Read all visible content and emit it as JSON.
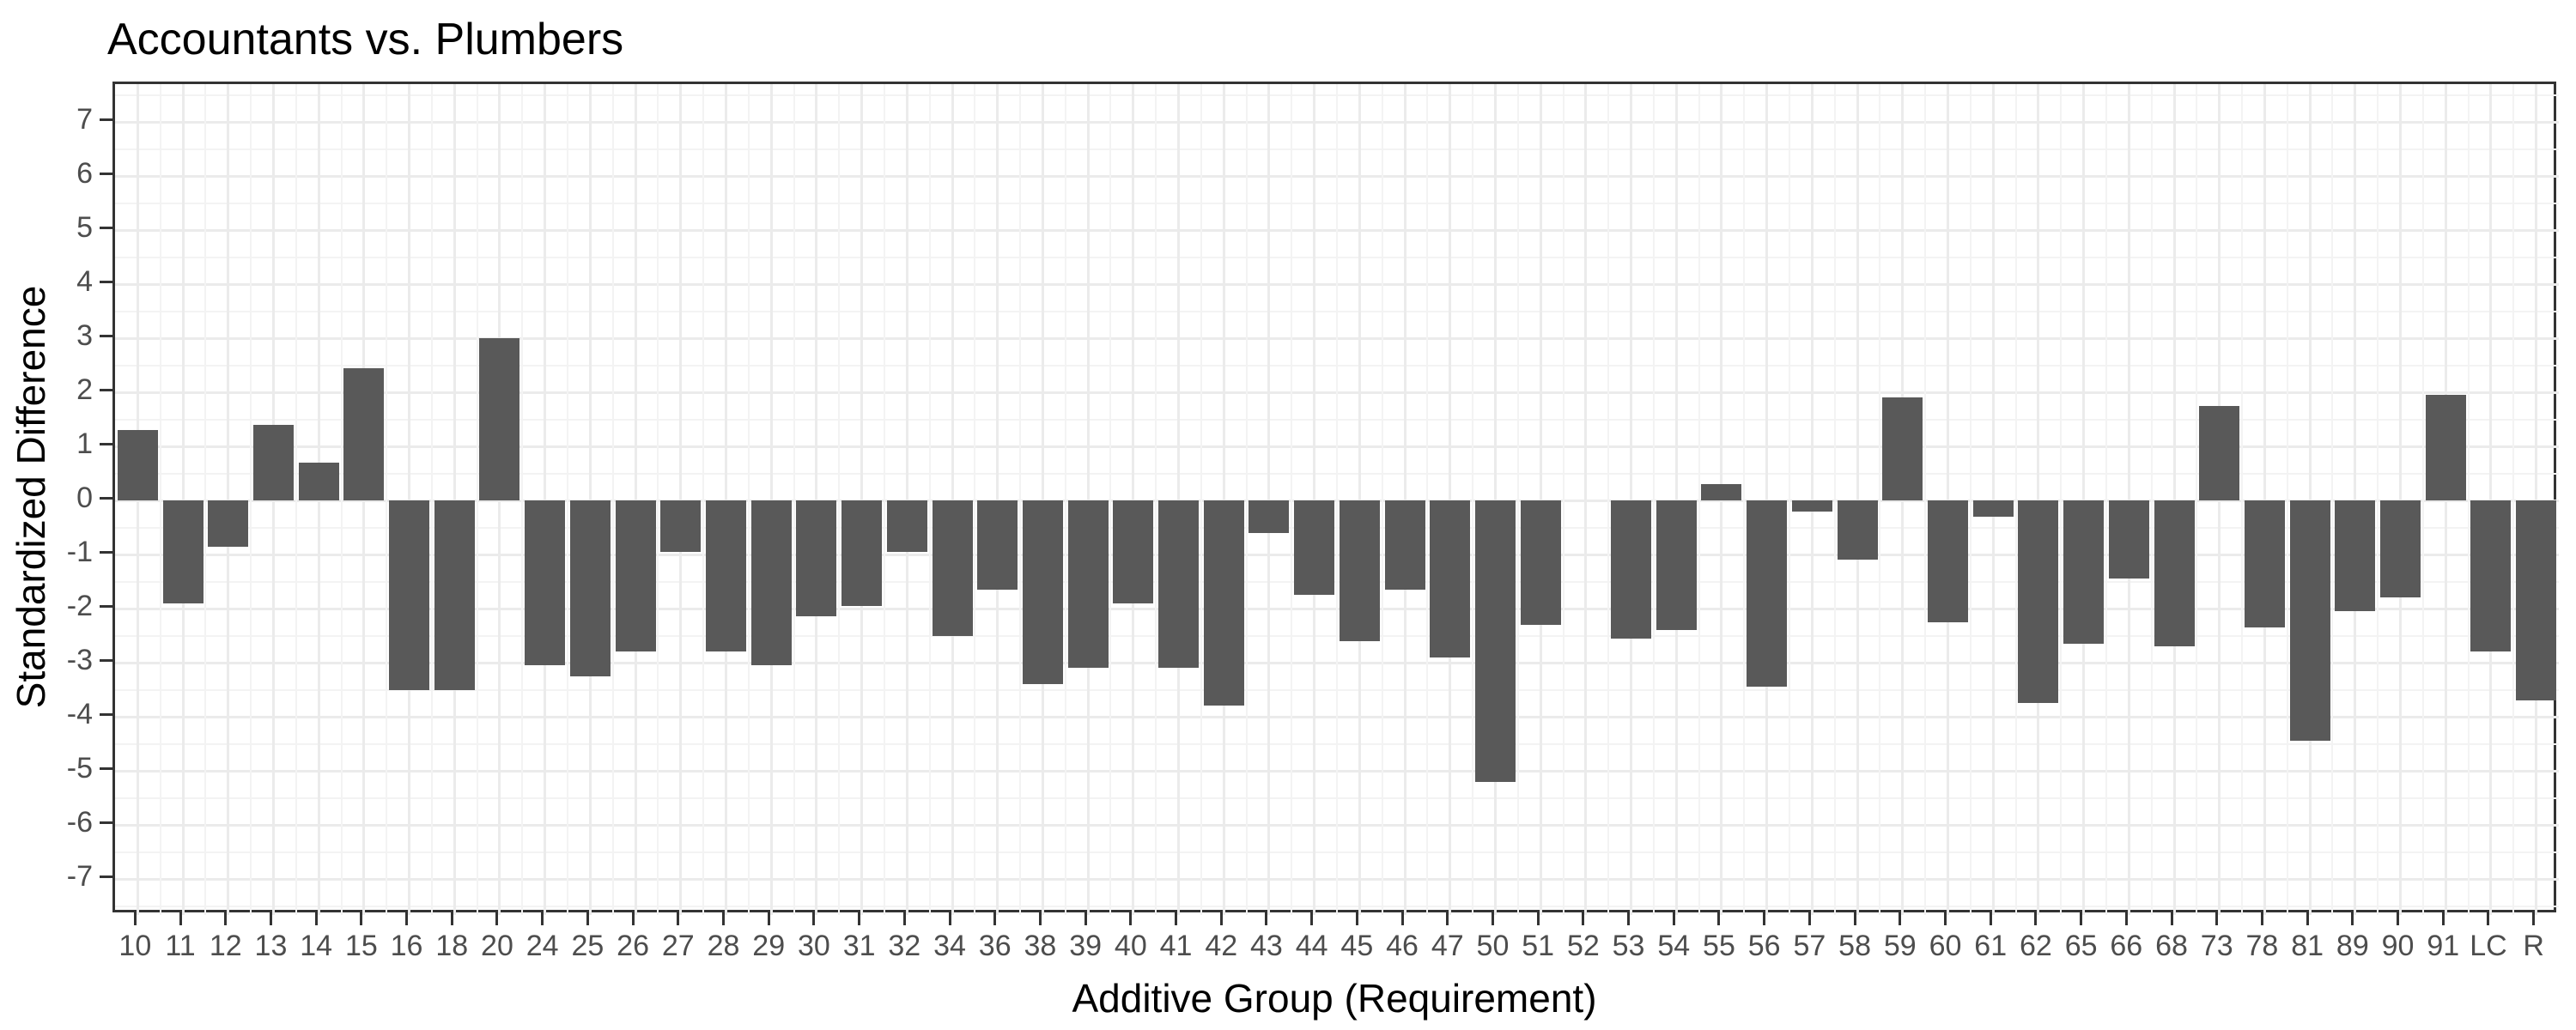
{
  "chart_data": {
    "type": "bar",
    "title": "Accountants vs. Plumbers",
    "xlabel": "Additive Group (Requirement)",
    "ylabel": "Standardized Difference",
    "categories": [
      "10",
      "11",
      "12",
      "13",
      "14",
      "15",
      "16",
      "18",
      "20",
      "24",
      "25",
      "26",
      "27",
      "28",
      "29",
      "30",
      "31",
      "32",
      "34",
      "36",
      "38",
      "39",
      "40",
      "41",
      "42",
      "43",
      "44",
      "45",
      "46",
      "47",
      "50",
      "51",
      "52",
      "53",
      "54",
      "55",
      "56",
      "57",
      "58",
      "59",
      "60",
      "61",
      "62",
      "65",
      "66",
      "68",
      "73",
      "78",
      "81",
      "89",
      "90",
      "91",
      "LC",
      "R"
    ],
    "values": [
      1.3,
      -1.9,
      -0.85,
      1.4,
      0.7,
      2.45,
      -3.5,
      -3.5,
      3.0,
      -3.05,
      -3.25,
      -2.8,
      -0.95,
      -2.8,
      -3.05,
      -2.15,
      -1.95,
      -0.95,
      -2.5,
      -1.65,
      -3.4,
      -3.1,
      -1.9,
      -3.1,
      -3.8,
      -0.6,
      -1.75,
      -2.6,
      -1.65,
      -2.9,
      -5.2,
      -2.3,
      0,
      -2.55,
      -2.4,
      0.3,
      -3.45,
      -0.2,
      -1.1,
      1.9,
      -2.25,
      -0.3,
      -3.75,
      -2.65,
      -1.45,
      -2.7,
      1.75,
      -2.35,
      -4.45,
      -2.05,
      -1.8,
      1.95,
      -2.8,
      -3.7
    ],
    "yticks": [
      7,
      6,
      5,
      4,
      3,
      2,
      1,
      0,
      -1,
      -2,
      -3,
      -4,
      -5,
      -6,
      -7
    ],
    "ylim": [
      -7.7,
      7.7
    ],
    "grid": "major and minor, horizontal and vertical",
    "legend": "none",
    "bar_color": "#595959",
    "colors": {
      "tick_label": "#4d4d4d",
      "axis_title": "#000000",
      "title": "#000000",
      "grid_major": "#ebebeb",
      "grid_minor": "#f3f3f3",
      "panel_border": "#333333",
      "tick_mark": "#333333",
      "background": "#ffffff"
    }
  }
}
